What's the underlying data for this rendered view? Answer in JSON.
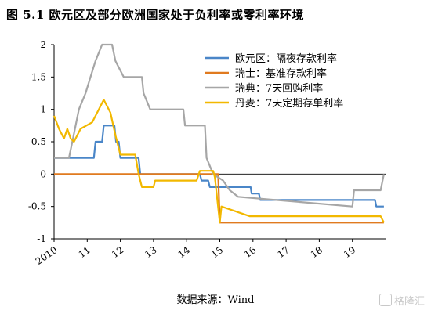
{
  "figure": {
    "title": "图 5.1  欧元区及部分欧洲国家处于负利率或零利率环境",
    "source": "数据来源：Wind",
    "watermark": "格隆汇"
  },
  "chart_data": {
    "type": "line",
    "title": "",
    "xlabel": "",
    "ylabel": "",
    "xlim": [
      2010,
      2020.0
    ],
    "ylim": [
      -1,
      2
    ],
    "yticks": [
      -1,
      -0.5,
      0,
      0.5,
      1,
      1.5,
      2
    ],
    "ytick_labels": [
      "-1",
      "-0.5",
      "0",
      "0.5",
      "1",
      "1.5",
      "2"
    ],
    "xticks": [
      2010,
      2011,
      2012,
      2013,
      2014,
      2015,
      2016,
      2017,
      2018,
      2019
    ],
    "xtick_labels": [
      "2010",
      "11",
      "12",
      "13",
      "14",
      "15",
      "16",
      "17",
      "18",
      "19"
    ],
    "grid": false,
    "legend_position": "top-right",
    "series": [
      {
        "name": "欧元区：隔夜存款利率",
        "color": "#4a86c8",
        "points": [
          [
            2010.0,
            0.25
          ],
          [
            2011.2,
            0.25
          ],
          [
            2011.25,
            0.5
          ],
          [
            2011.45,
            0.5
          ],
          [
            2011.5,
            0.75
          ],
          [
            2011.82,
            0.75
          ],
          [
            2011.87,
            0.5
          ],
          [
            2011.95,
            0.5
          ],
          [
            2012.0,
            0.25
          ],
          [
            2012.55,
            0.25
          ],
          [
            2012.6,
            0.0
          ],
          [
            2014.4,
            0.0
          ],
          [
            2014.45,
            -0.1
          ],
          [
            2014.65,
            -0.1
          ],
          [
            2014.7,
            -0.2
          ],
          [
            2015.93,
            -0.2
          ],
          [
            2015.96,
            -0.3
          ],
          [
            2016.18,
            -0.3
          ],
          [
            2016.22,
            -0.4
          ],
          [
            2019.68,
            -0.4
          ],
          [
            2019.72,
            -0.5
          ],
          [
            2019.95,
            -0.5
          ]
        ]
      },
      {
        "name": "瑞士：基准存款利率",
        "color": "#e07a1f",
        "points": [
          [
            2010.0,
            0.0
          ],
          [
            2014.95,
            0.0
          ],
          [
            2015.0,
            -0.75
          ],
          [
            2019.95,
            -0.75
          ]
        ]
      },
      {
        "name": "瑞典：7天回购利率",
        "color": "#a6a6a6",
        "points": [
          [
            2010.0,
            0.25
          ],
          [
            2010.45,
            0.25
          ],
          [
            2010.55,
            0.5
          ],
          [
            2010.75,
            1.0
          ],
          [
            2010.95,
            1.25
          ],
          [
            2011.1,
            1.5
          ],
          [
            2011.25,
            1.75
          ],
          [
            2011.45,
            2.0
          ],
          [
            2011.75,
            2.0
          ],
          [
            2011.85,
            1.75
          ],
          [
            2012.1,
            1.5
          ],
          [
            2012.65,
            1.5
          ],
          [
            2012.7,
            1.25
          ],
          [
            2012.9,
            1.0
          ],
          [
            2013.9,
            1.0
          ],
          [
            2013.95,
            0.75
          ],
          [
            2014.55,
            0.75
          ],
          [
            2014.6,
            0.25
          ],
          [
            2014.8,
            0.0
          ],
          [
            2015.1,
            -0.1
          ],
          [
            2015.3,
            -0.25
          ],
          [
            2015.55,
            -0.35
          ],
          [
            2019.0,
            -0.5
          ],
          [
            2019.05,
            -0.25
          ],
          [
            2019.85,
            -0.25
          ],
          [
            2019.95,
            0.0
          ]
        ]
      },
      {
        "name": "丹麦：7天定期存单利率",
        "color": "#f2b800",
        "points": [
          [
            2010.0,
            0.9
          ],
          [
            2010.15,
            0.7
          ],
          [
            2010.3,
            0.55
          ],
          [
            2010.4,
            0.7
          ],
          [
            2010.5,
            0.55
          ],
          [
            2010.6,
            0.5
          ],
          [
            2010.8,
            0.7
          ],
          [
            2011.15,
            0.8
          ],
          [
            2011.35,
            1.0
          ],
          [
            2011.5,
            1.15
          ],
          [
            2011.7,
            0.95
          ],
          [
            2011.85,
            0.6
          ],
          [
            2012.0,
            0.3
          ],
          [
            2012.45,
            0.3
          ],
          [
            2012.55,
            0.0
          ],
          [
            2012.65,
            -0.2
          ],
          [
            2013.0,
            -0.2
          ],
          [
            2013.05,
            -0.1
          ],
          [
            2014.3,
            -0.1
          ],
          [
            2014.4,
            0.05
          ],
          [
            2014.8,
            0.05
          ],
          [
            2014.85,
            -0.05
          ],
          [
            2015.0,
            -0.75
          ],
          [
            2015.05,
            -0.5
          ],
          [
            2015.9,
            -0.65
          ],
          [
            2019.85,
            -0.65
          ],
          [
            2019.95,
            -0.75
          ]
        ]
      }
    ]
  }
}
